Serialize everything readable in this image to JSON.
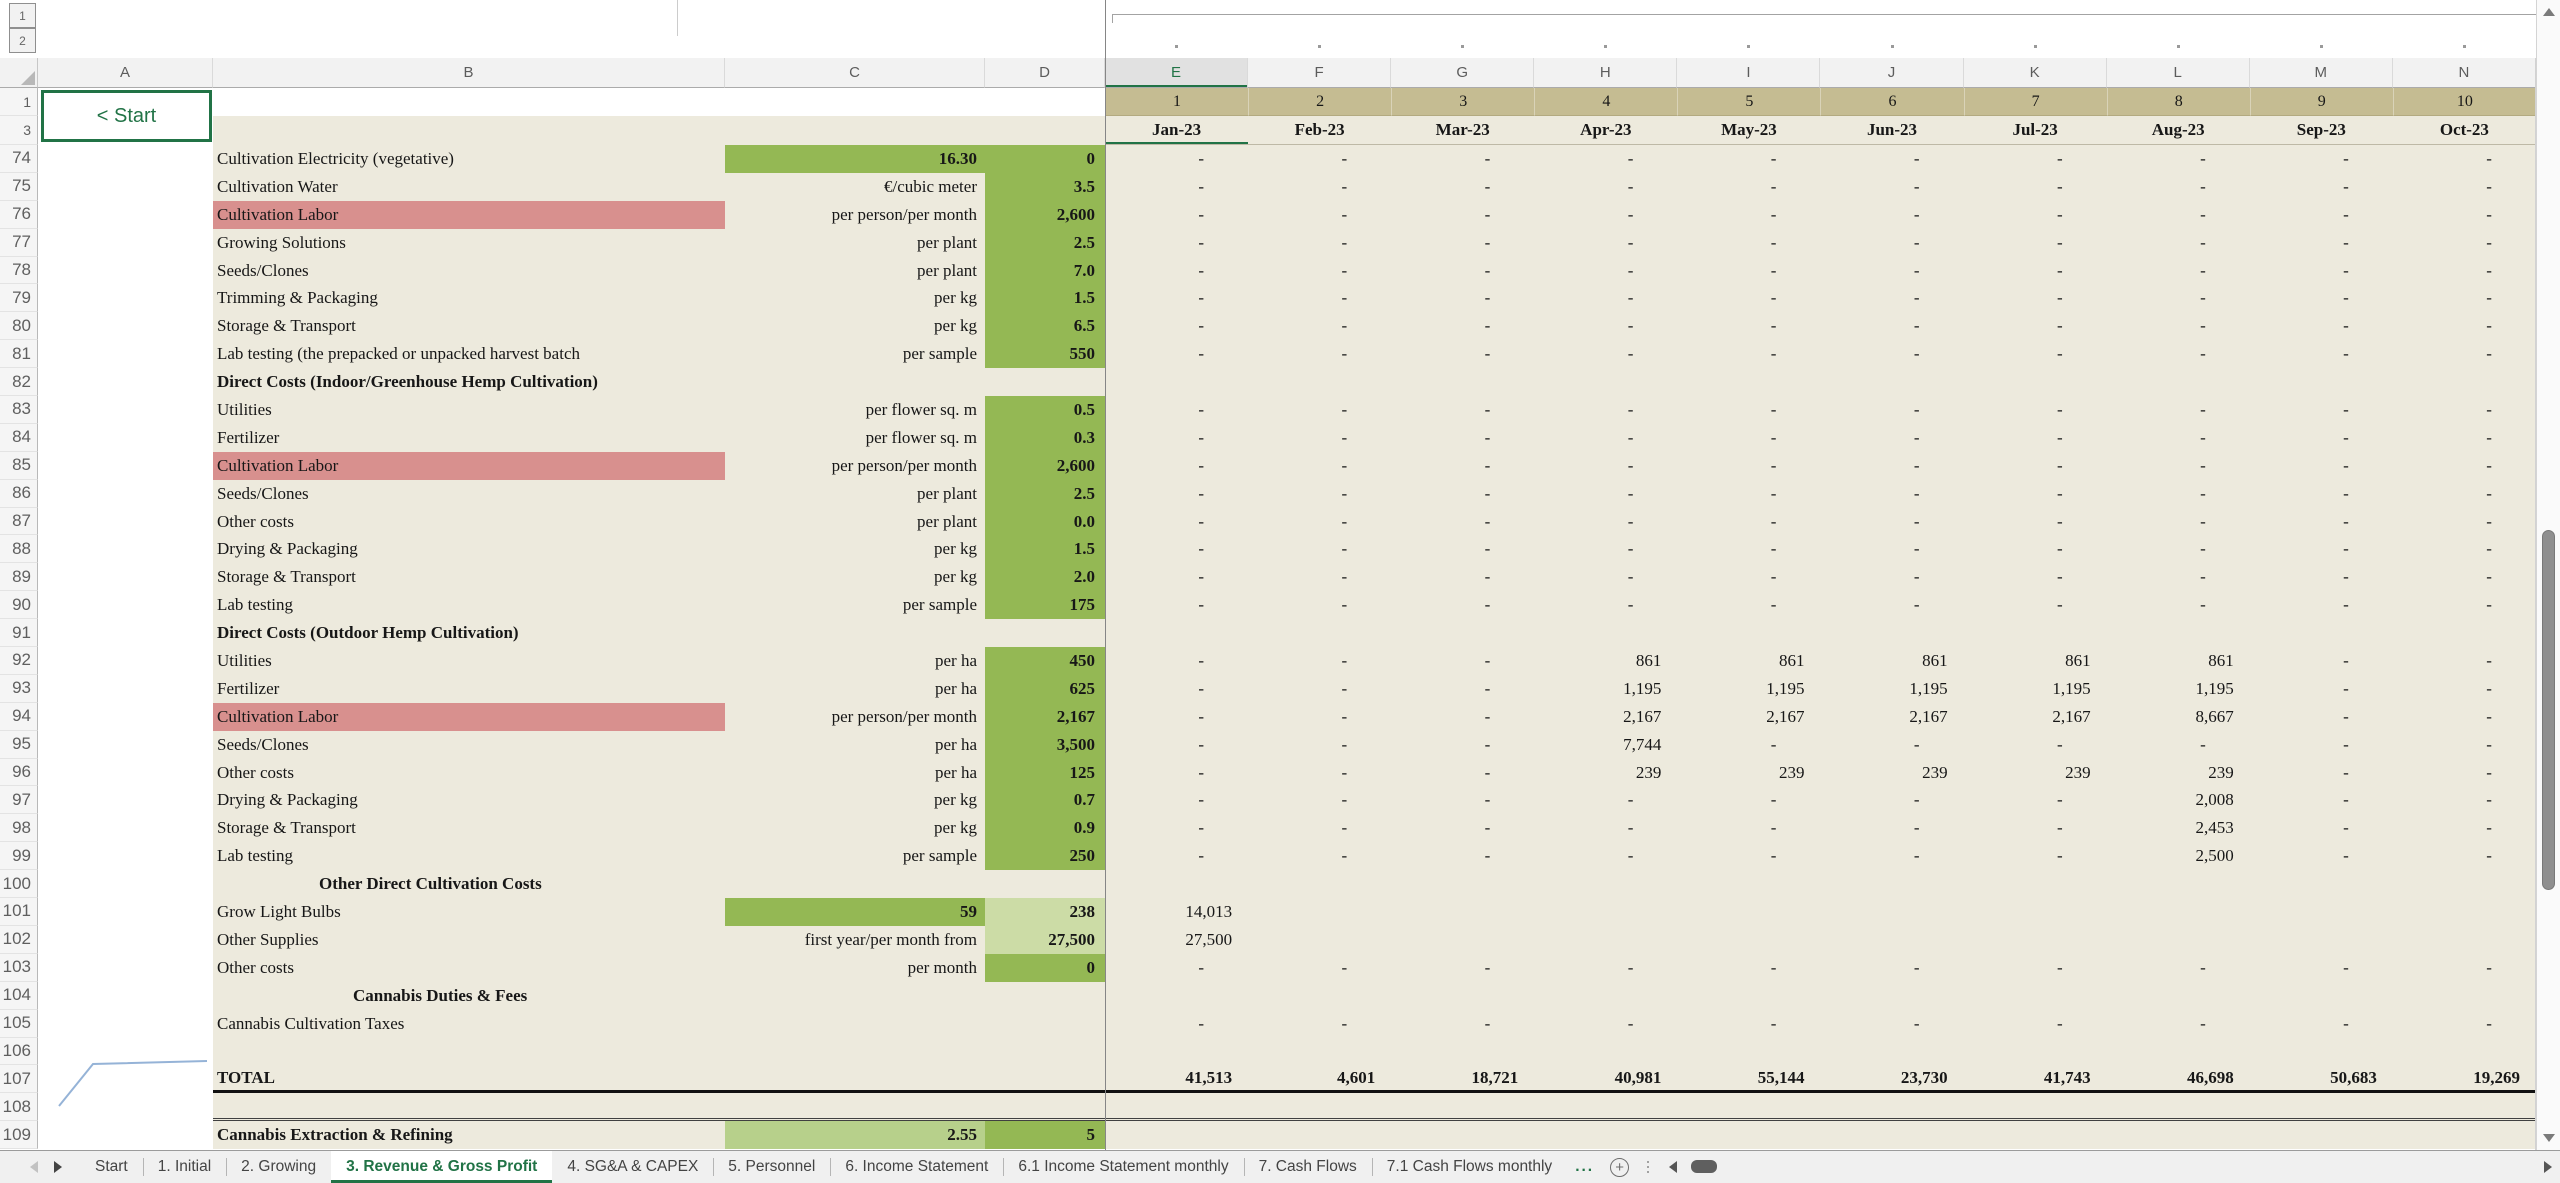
{
  "sheet": {
    "outline_levels": [
      "1",
      "2"
    ],
    "start_button": "< Start",
    "column_letters": [
      "A",
      "B",
      "C",
      "D",
      "E",
      "F",
      "G",
      "H",
      "I",
      "J",
      "K",
      "L",
      "M",
      "N"
    ],
    "selected_column": "E",
    "row1_label": "1",
    "row3_label": "3",
    "periods": [
      "1",
      "2",
      "3",
      "4",
      "5",
      "6",
      "7",
      "8",
      "9",
      "10"
    ],
    "months": [
      "Jan-23",
      "Feb-23",
      "Mar-23",
      "Apr-23",
      "May-23",
      "Jun-23",
      "Jul-23",
      "Aug-23",
      "Sep-23",
      "Oct-23"
    ],
    "rows": [
      {
        "num": "74",
        "label": "Cultivation Electricity (vegetative)",
        "unit": "16.30",
        "unit_bg": "green",
        "value": "0",
        "value_bg": "green",
        "cells": [
          "-",
          "-",
          "-",
          "-",
          "-",
          "-",
          "-",
          "-",
          "-",
          "-"
        ]
      },
      {
        "num": "75",
        "label": "Cultivation Water",
        "unit": "€/cubic meter",
        "value": "3.5",
        "value_bg": "green",
        "cells": [
          "-",
          "-",
          "-",
          "-",
          "-",
          "-",
          "-",
          "-",
          "-",
          "-"
        ]
      },
      {
        "num": "76",
        "label": "Cultivation Labor",
        "label_bg": "red",
        "unit": "per person/per month",
        "value": "2,600",
        "value_bg": "green",
        "cells": [
          "-",
          "-",
          "-",
          "-",
          "-",
          "-",
          "-",
          "-",
          "-",
          "-"
        ]
      },
      {
        "num": "77",
        "label": "Growing Solutions",
        "unit": "per plant",
        "value": "2.5",
        "value_bg": "green",
        "cells": [
          "-",
          "-",
          "-",
          "-",
          "-",
          "-",
          "-",
          "-",
          "-",
          "-"
        ]
      },
      {
        "num": "78",
        "label": "Seeds/Clones",
        "unit": "per plant",
        "value": "7.0",
        "value_bg": "green",
        "cells": [
          "-",
          "-",
          "-",
          "-",
          "-",
          "-",
          "-",
          "-",
          "-",
          "-"
        ]
      },
      {
        "num": "79",
        "label": "Trimming & Packaging",
        "unit": "per kg",
        "value": "1.5",
        "value_bg": "green",
        "cells": [
          "-",
          "-",
          "-",
          "-",
          "-",
          "-",
          "-",
          "-",
          "-",
          "-"
        ]
      },
      {
        "num": "80",
        "label": "Storage & Transport",
        "unit": "per kg",
        "value": "6.5",
        "value_bg": "green",
        "cells": [
          "-",
          "-",
          "-",
          "-",
          "-",
          "-",
          "-",
          "-",
          "-",
          "-"
        ]
      },
      {
        "num": "81",
        "label": "Lab testing (the prepacked or unpacked harvest batch",
        "unit": "per sample",
        "value": "550",
        "value_bg": "green",
        "cells": [
          "-",
          "-",
          "-",
          "-",
          "-",
          "-",
          "-",
          "-",
          "-",
          "-"
        ]
      },
      {
        "num": "82",
        "label": "Direct Costs (Indoor/Greenhouse Hemp Cultivation)",
        "label_style": "bold",
        "unit": "",
        "value": "",
        "cells": [
          "",
          "",
          "",
          "",
          "",
          "",
          "",
          "",
          "",
          ""
        ]
      },
      {
        "num": "83",
        "label": "Utilities",
        "unit": "per flower sq. m",
        "value": "0.5",
        "value_bg": "green",
        "cells": [
          "-",
          "-",
          "-",
          "-",
          "-",
          "-",
          "-",
          "-",
          "-",
          "-"
        ]
      },
      {
        "num": "84",
        "label": "Fertilizer",
        "unit": "per flower sq. m",
        "value": "0.3",
        "value_bg": "green",
        "cells": [
          "-",
          "-",
          "-",
          "-",
          "-",
          "-",
          "-",
          "-",
          "-",
          "-"
        ]
      },
      {
        "num": "85",
        "label": "Cultivation Labor",
        "label_bg": "red",
        "unit": "per person/per month",
        "value": "2,600",
        "value_bg": "green",
        "cells": [
          "-",
          "-",
          "-",
          "-",
          "-",
          "-",
          "-",
          "-",
          "-",
          "-"
        ]
      },
      {
        "num": "86",
        "label": "Seeds/Clones",
        "unit": "per plant",
        "value": "2.5",
        "value_bg": "green",
        "cells": [
          "-",
          "-",
          "-",
          "-",
          "-",
          "-",
          "-",
          "-",
          "-",
          "-"
        ]
      },
      {
        "num": "87",
        "label": "Other costs",
        "unit": "per plant",
        "value": "0.0",
        "value_bg": "green",
        "cells": [
          "-",
          "-",
          "-",
          "-",
          "-",
          "-",
          "-",
          "-",
          "-",
          "-"
        ]
      },
      {
        "num": "88",
        "label": "Drying & Packaging",
        "unit": "per kg",
        "value": "1.5",
        "value_bg": "green",
        "cells": [
          "-",
          "-",
          "-",
          "-",
          "-",
          "-",
          "-",
          "-",
          "-",
          "-"
        ]
      },
      {
        "num": "89",
        "label": "Storage & Transport",
        "unit": "per kg",
        "value": "2.0",
        "value_bg": "green",
        "cells": [
          "-",
          "-",
          "-",
          "-",
          "-",
          "-",
          "-",
          "-",
          "-",
          "-"
        ]
      },
      {
        "num": "90",
        "label": "Lab testing",
        "unit": "per sample",
        "value": "175",
        "value_bg": "green",
        "cells": [
          "-",
          "-",
          "-",
          "-",
          "-",
          "-",
          "-",
          "-",
          "-",
          "-"
        ]
      },
      {
        "num": "91",
        "label": "Direct Costs (Outdoor Hemp Cultivation)",
        "label_style": "bold",
        "unit": "",
        "value": "",
        "cells": [
          "",
          "",
          "",
          "",
          "",
          "",
          "",
          "",
          "",
          ""
        ]
      },
      {
        "num": "92",
        "label": "Utilities",
        "unit": "per ha",
        "value": "450",
        "value_bg": "green",
        "cells": [
          "-",
          "-",
          "-",
          "861",
          "861",
          "861",
          "861",
          "861",
          "-",
          "-"
        ]
      },
      {
        "num": "93",
        "label": "Fertilizer",
        "unit": "per ha",
        "value": "625",
        "value_bg": "green",
        "cells": [
          "-",
          "-",
          "-",
          "1,195",
          "1,195",
          "1,195",
          "1,195",
          "1,195",
          "-",
          "-"
        ]
      },
      {
        "num": "94",
        "label": "Cultivation Labor",
        "label_bg": "red",
        "unit": "per person/per month",
        "value": "2,167",
        "value_bg": "green",
        "cells": [
          "-",
          "-",
          "-",
          "2,167",
          "2,167",
          "2,167",
          "2,167",
          "8,667",
          "-",
          "-"
        ]
      },
      {
        "num": "95",
        "label": "Seeds/Clones",
        "unit": "per ha",
        "value": "3,500",
        "value_bg": "green",
        "cells": [
          "-",
          "-",
          "-",
          "7,744",
          "-",
          "-",
          "-",
          "-",
          "-",
          "-"
        ]
      },
      {
        "num": "96",
        "label": "Other costs",
        "unit": "per ha",
        "value": "125",
        "value_bg": "green",
        "cells": [
          "-",
          "-",
          "-",
          "239",
          "239",
          "239",
          "239",
          "239",
          "-",
          "-"
        ]
      },
      {
        "num": "97",
        "label": "Drying & Packaging",
        "unit": "per kg",
        "value": "0.7",
        "value_bg": "green",
        "cells": [
          "-",
          "-",
          "-",
          "-",
          "-",
          "-",
          "-",
          "2,008",
          "-",
          "-"
        ]
      },
      {
        "num": "98",
        "label": "Storage & Transport",
        "unit": "per kg",
        "value": "0.9",
        "value_bg": "green",
        "cells": [
          "-",
          "-",
          "-",
          "-",
          "-",
          "-",
          "-",
          "2,453",
          "-",
          "-"
        ]
      },
      {
        "num": "99",
        "label": "Lab testing",
        "unit": "per sample",
        "value": "250",
        "value_bg": "green",
        "cells": [
          "-",
          "-",
          "-",
          "-",
          "-",
          "-",
          "-",
          "2,500",
          "-",
          "-"
        ]
      },
      {
        "num": "100",
        "label": "Other Direct Cultivation Costs",
        "label_style": "bold-indent1",
        "unit": "",
        "value": "",
        "cells": [
          "",
          "",
          "",
          "",
          "",
          "",
          "",
          "",
          "",
          ""
        ]
      },
      {
        "num": "101",
        "label": "Grow Light Bulbs",
        "unit": "59",
        "unit_bg": "green",
        "value": "238",
        "value_bg": "light",
        "cells": [
          "14,013",
          "",
          "",
          "",
          "",
          "",
          "",
          "",
          "",
          ""
        ]
      },
      {
        "num": "102",
        "label": "Other Supplies",
        "unit": "first year/per month from",
        "value": "27,500",
        "value_bg": "light",
        "cells": [
          "27,500",
          "",
          "",
          "",
          "",
          "",
          "",
          "",
          "",
          ""
        ]
      },
      {
        "num": "103",
        "label": "Other costs",
        "unit": "per month",
        "value": "0",
        "value_bg": "green",
        "cells": [
          "-",
          "-",
          "-",
          "-",
          "-",
          "-",
          "-",
          "-",
          "-",
          "-"
        ]
      },
      {
        "num": "104",
        "label": "Cannabis Duties & Fees",
        "label_style": "bold-indent2",
        "unit": "",
        "value": "",
        "cells": [
          "",
          "",
          "",
          "",
          "",
          "",
          "",
          "",
          "",
          ""
        ]
      },
      {
        "num": "105",
        "label": "Cannabis Cultivation Taxes",
        "unit": "",
        "value": "",
        "cells": [
          "-",
          "-",
          "-",
          "-",
          "-",
          "-",
          "-",
          "-",
          "-",
          "-"
        ]
      },
      {
        "num": "106",
        "label": "",
        "unit": "",
        "value": "",
        "cells": [
          "",
          "",
          "",
          "",
          "",
          "",
          "",
          "",
          "",
          ""
        ]
      },
      {
        "num": "107",
        "label": "TOTAL",
        "label_style": "bold",
        "unit": "",
        "value": "",
        "border": "thick",
        "cells_bold": true,
        "cells": [
          "41,513",
          "4,601",
          "18,721",
          "40,981",
          "55,144",
          "23,730",
          "41,743",
          "46,698",
          "50,683",
          "19,269"
        ]
      },
      {
        "num": "108",
        "label": "",
        "unit": "",
        "value": "",
        "border": "double",
        "cells": [
          "",
          "",
          "",
          "",
          "",
          "",
          "",
          "",
          "",
          ""
        ]
      },
      {
        "num": "109",
        "label": "Cannabis Extraction & Refining",
        "label_style": "bold",
        "unit": "2.55",
        "unit_bg": "mid",
        "value": "5",
        "value_bg": "green",
        "cells": [
          "",
          "",
          "",
          "",
          "",
          "",
          "",
          "",
          "",
          ""
        ]
      }
    ]
  },
  "tab_bar": {
    "tabs": [
      {
        "label": "Start",
        "active": false
      },
      {
        "label": "1. Initial",
        "active": false
      },
      {
        "label": "2. Growing",
        "active": false
      },
      {
        "label": "3. Revenue & Gross Profit",
        "active": true
      },
      {
        "label": "4. SG&A & CAPEX",
        "active": false
      },
      {
        "label": "5. Personnel",
        "active": false
      },
      {
        "label": "6. Income Statement",
        "active": false
      },
      {
        "label": "6.1 Income Statement monthly",
        "active": false
      },
      {
        "label": "7. Cash Flows",
        "active": false
      },
      {
        "label": "7.1 Cash Flows monthly",
        "active": false
      }
    ],
    "more_indicator": "...",
    "add_sheet": "+"
  },
  "colors": {
    "excel_green": "#217346",
    "cell_green": "#94b854",
    "cell_light_green": "#ccdca6",
    "cell_mid_green": "#b7d08b",
    "label_red": "#d8908e",
    "band_khaki": "#c5bc92",
    "body_cream": "#edeadd"
  }
}
